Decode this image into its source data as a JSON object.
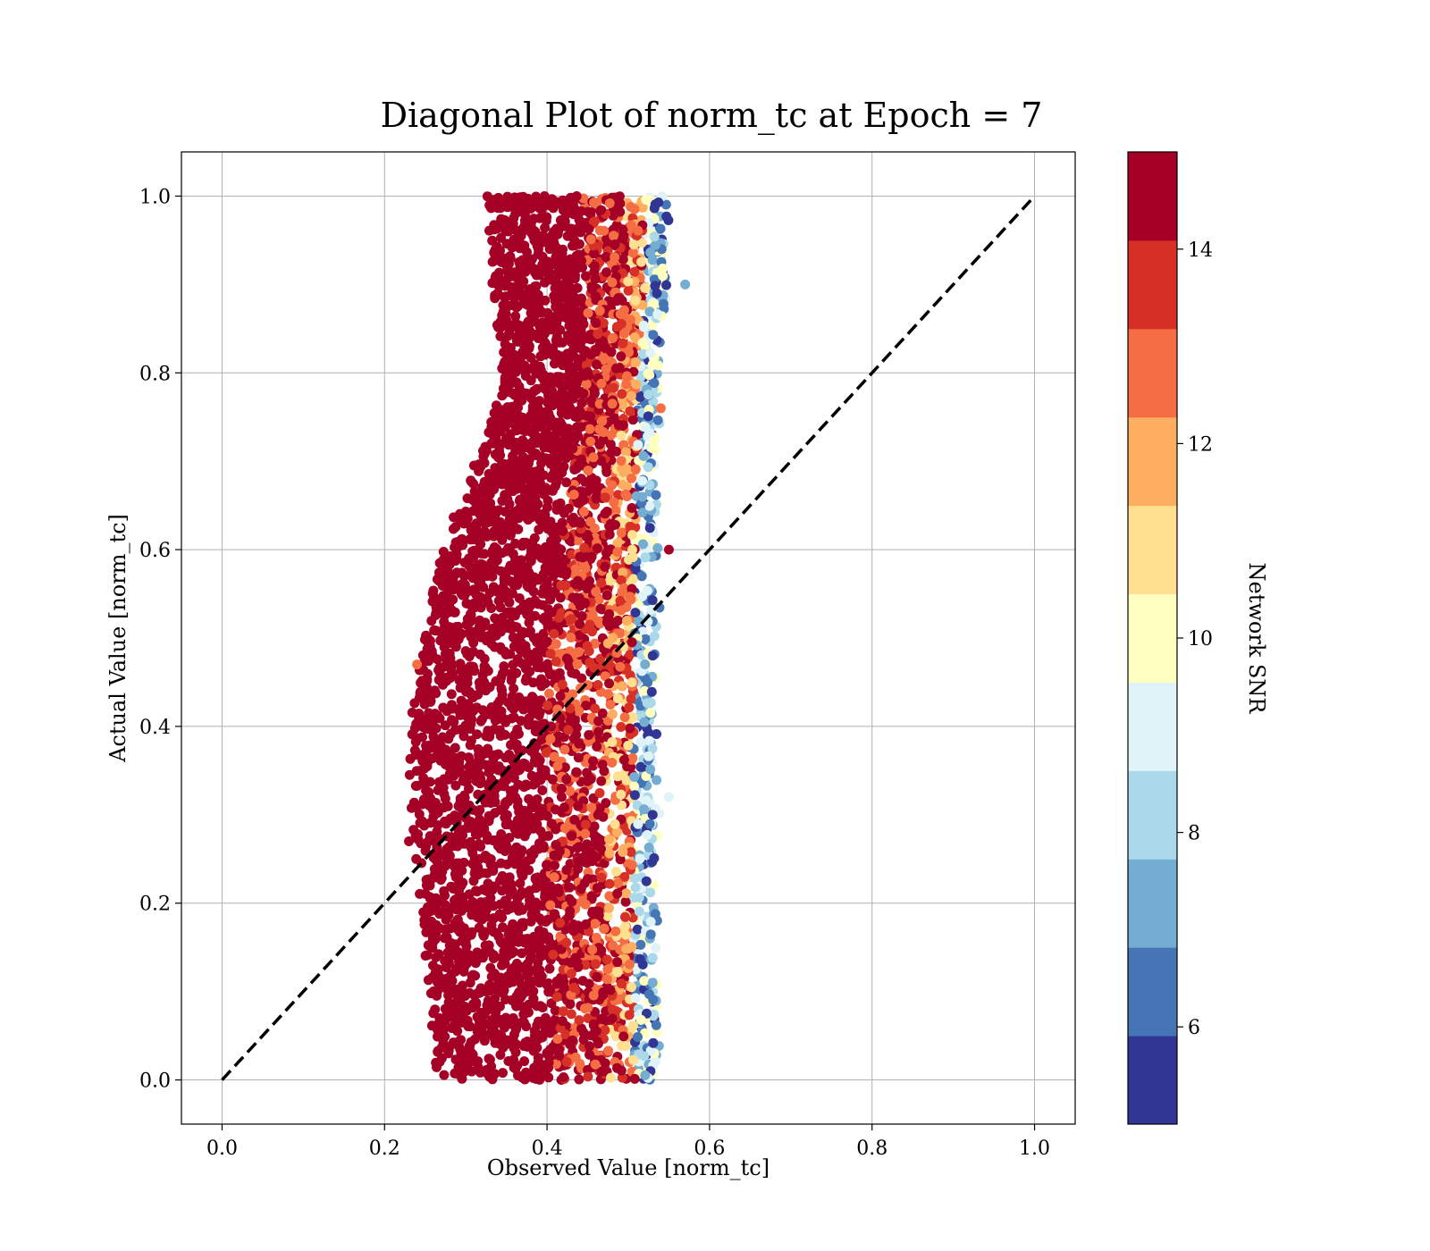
{
  "chart_data": {
    "type": "scatter",
    "title": "Diagonal Plot of norm_tc at Epoch = 7",
    "xlabel": "Observed Value [norm_tc]",
    "ylabel": "Actual Value [norm_tc]",
    "xlim": [
      -0.05,
      1.05
    ],
    "ylim": [
      -0.05,
      1.05
    ],
    "xticks": [
      "0.0",
      "0.2",
      "0.4",
      "0.6",
      "0.8",
      "1.0"
    ],
    "yticks": [
      "0.0",
      "0.2",
      "0.4",
      "0.6",
      "0.8",
      "1.0"
    ],
    "grid": true,
    "reference_line": {
      "style": "dashed",
      "color": "#000000",
      "from": [
        0.0,
        0.0
      ],
      "to": [
        1.0,
        1.0
      ]
    },
    "colorbar": {
      "label": "Network SNR",
      "range": [
        5,
        15
      ],
      "ticks": [
        "6",
        "8",
        "10",
        "12",
        "14"
      ],
      "bands": [
        "#313695",
        "#4575b4",
        "#74add1",
        "#abd9e9",
        "#e0f3f8",
        "#ffffbf",
        "#fee090",
        "#fdae61",
        "#f46d43",
        "#d73027",
        "#a50026"
      ]
    },
    "cloud": {
      "profile": [
        {
          "y": 0.0,
          "left": 0.28,
          "right": 0.52
        },
        {
          "y": 0.1,
          "left": 0.27,
          "right": 0.52
        },
        {
          "y": 0.2,
          "left": 0.26,
          "right": 0.52
        },
        {
          "y": 0.3,
          "left": 0.25,
          "right": 0.52
        },
        {
          "y": 0.4,
          "left": 0.25,
          "right": 0.52
        },
        {
          "y": 0.5,
          "left": 0.26,
          "right": 0.52
        },
        {
          "y": 0.6,
          "left": 0.29,
          "right": 0.52
        },
        {
          "y": 0.7,
          "left": 0.33,
          "right": 0.52
        },
        {
          "y": 0.8,
          "left": 0.36,
          "right": 0.52
        },
        {
          "y": 0.9,
          "left": 0.35,
          "right": 0.53
        },
        {
          "y": 1.0,
          "left": 0.34,
          "right": 0.53
        }
      ]
    }
  }
}
